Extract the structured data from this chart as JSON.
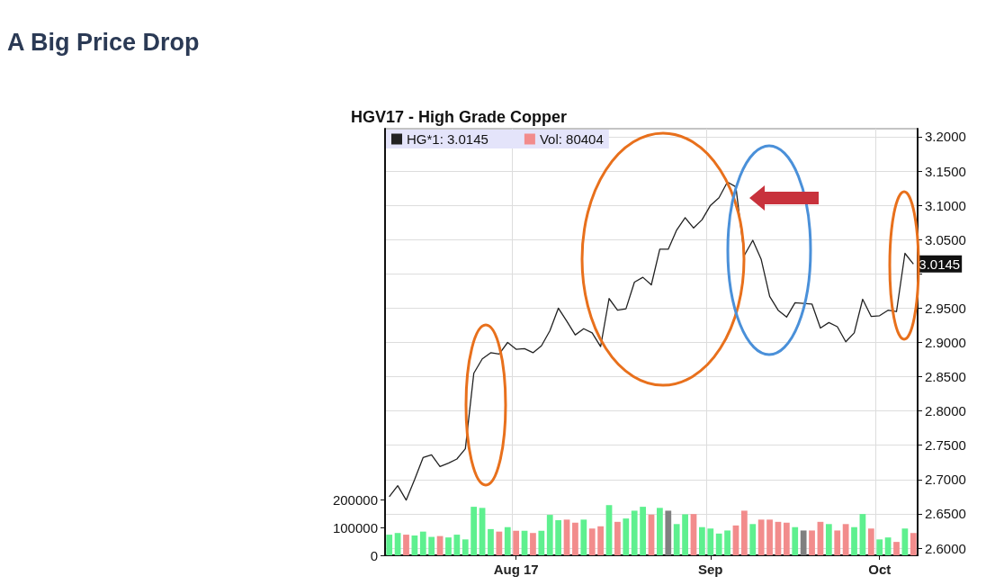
{
  "chart_data": {
    "type": "bar",
    "title": "A Big Price Drop",
    "subtitle": "HGV17 - High Grade Copper",
    "categories": [
      null,
      null,
      null,
      null,
      null,
      null,
      null,
      null,
      null,
      null,
      null,
      null,
      null,
      null,
      null,
      "Aug 17",
      null,
      null,
      null,
      null,
      null,
      null,
      null,
      null,
      null,
      null,
      null,
      null,
      null,
      null,
      null,
      null,
      null,
      null,
      null,
      null,
      null,
      null,
      "Sep",
      null,
      null,
      null,
      null,
      null,
      null,
      null,
      null,
      null,
      null,
      null,
      null,
      null,
      null,
      null,
      null,
      null,
      null,
      null,
      "Oct",
      null,
      null,
      null,
      null
    ],
    "series": [
      {
        "name": "HG*1: 3.0145",
        "type": "line",
        "axis": "y2",
        "color": "#222222",
        "marker": "none",
        "line_style": "solid",
        "values": [
          2.675,
          2.691,
          2.67,
          2.7,
          2.732,
          2.736,
          2.719,
          2.724,
          2.73,
          2.745,
          2.855,
          2.876,
          2.885,
          2.883,
          2.9,
          2.89,
          2.891,
          2.885,
          2.895,
          2.917,
          2.95,
          2.931,
          2.911,
          2.92,
          2.914,
          2.894,
          2.964,
          2.947,
          2.949,
          2.988,
          2.995,
          2.984,
          3.036,
          3.036,
          3.064,
          3.082,
          3.067,
          3.079,
          3.1,
          3.111,
          3.134,
          3.127,
          3.027,
          3.049,
          3.021,
          2.967,
          2.947,
          2.937,
          2.958,
          2.957,
          2.956,
          2.921,
          2.929,
          2.923,
          2.901,
          2.914,
          2.963,
          2.938,
          2.939,
          2.947,
          2.945,
          3.03,
          3.0145
        ],
        "value_labels": [
          null,
          null,
          null,
          null,
          null,
          null,
          null,
          null,
          null,
          null,
          null,
          null,
          null,
          null,
          null,
          null,
          null,
          null,
          null,
          null,
          null,
          null,
          null,
          null,
          null,
          null,
          null,
          null,
          null,
          null,
          null,
          null,
          null,
          null,
          null,
          null,
          null,
          null,
          null,
          null,
          null,
          null,
          null,
          null,
          null,
          null,
          null,
          null,
          null,
          null,
          null,
          null,
          null,
          null,
          null,
          null,
          null,
          null,
          null,
          null,
          null,
          null,
          "3.0145"
        ]
      },
      {
        "name": "Vol: 80404",
        "color": "#f28c8c",
        "values": [
          74000,
          80000,
          74000,
          71000,
          85000,
          66000,
          69000,
          64000,
          74000,
          57000,
          174000,
          170000,
          94000,
          85000,
          101000,
          88000,
          88000,
          80000,
          88000,
          145000,
          126000,
          128000,
          117000,
          128000,
          96000,
          104000,
          180000,
          120000,
          132000,
          160000,
          174000,
          146000,
          170000,
          160000,
          112000,
          147000,
          148000,
          101000,
          96000,
          78000,
          89000,
          107000,
          160000,
          112000,
          128000,
          128000,
          120000,
          117000,
          101000,
          89000,
          89000,
          120000,
          112000,
          89000,
          112000,
          101000,
          148000,
          96000,
          57000,
          64000,
          48000,
          96000,
          80000
        ],
        "colors": [
          "#5ef08f",
          "#5ef08f",
          "#f28c8c",
          "#5ef08f",
          "#5ef08f",
          "#5ef08f",
          "#f28c8c",
          "#5ef08f",
          "#5ef08f",
          "#5ef08f",
          "#5ef08f",
          "#5ef08f",
          "#5ef08f",
          "#f28c8c",
          "#5ef08f",
          "#f28c8c",
          "#5ef08f",
          "#f28c8c",
          "#5ef08f",
          "#5ef08f",
          "#5ef08f",
          "#f28c8c",
          "#f28c8c",
          "#5ef08f",
          "#f28c8c",
          "#f28c8c",
          "#5ef08f",
          "#f28c8c",
          "#5ef08f",
          "#5ef08f",
          "#5ef08f",
          "#f28c8c",
          "#5ef08f",
          "#808080",
          "#5ef08f",
          "#5ef08f",
          "#f28c8c",
          "#5ef08f",
          "#5ef08f",
          "#5ef08f",
          "#5ef08f",
          "#f28c8c",
          "#f28c8c",
          "#5ef08f",
          "#f28c8c",
          "#f28c8c",
          "#f28c8c",
          "#f28c8c",
          "#5ef08f",
          "#808080",
          "#f28c8c",
          "#f28c8c",
          "#5ef08f",
          "#f28c8c",
          "#f28c8c",
          "#5ef08f",
          "#5ef08f",
          "#f28c8c",
          "#5ef08f",
          "#5ef08f",
          "#f28c8c",
          "#5ef08f",
          "#f28c8c"
        ]
      }
    ],
    "ylim": [
      0,
      1530000
    ],
    "yticks": [
      0,
      100000,
      200000
    ],
    "y2lim": [
      2.5895,
      3.2118
    ],
    "y2ticks": [
      {
        "value": 2.6,
        "label": "2.6000"
      },
      {
        "value": 2.65,
        "label": "2.6500"
      },
      {
        "value": 2.7,
        "label": "2.7000"
      },
      {
        "value": 2.75,
        "label": "2.7500"
      },
      {
        "value": 2.8,
        "label": "2.8000"
      },
      {
        "value": 2.85,
        "label": "2.8500"
      },
      {
        "value": 2.9,
        "label": "2.9000"
      },
      {
        "value": 2.95,
        "label": "2.9500"
      },
      {
        "value": 3.0,
        "label": null
      },
      {
        "value": 3.05,
        "label": "3.0500"
      },
      {
        "value": 3.1,
        "label": "3.1000"
      },
      {
        "value": 3.15,
        "label": "3.1500"
      },
      {
        "value": 3.2,
        "label": "3.2000"
      }
    ],
    "grid": true,
    "legend": "top left"
  }
}
